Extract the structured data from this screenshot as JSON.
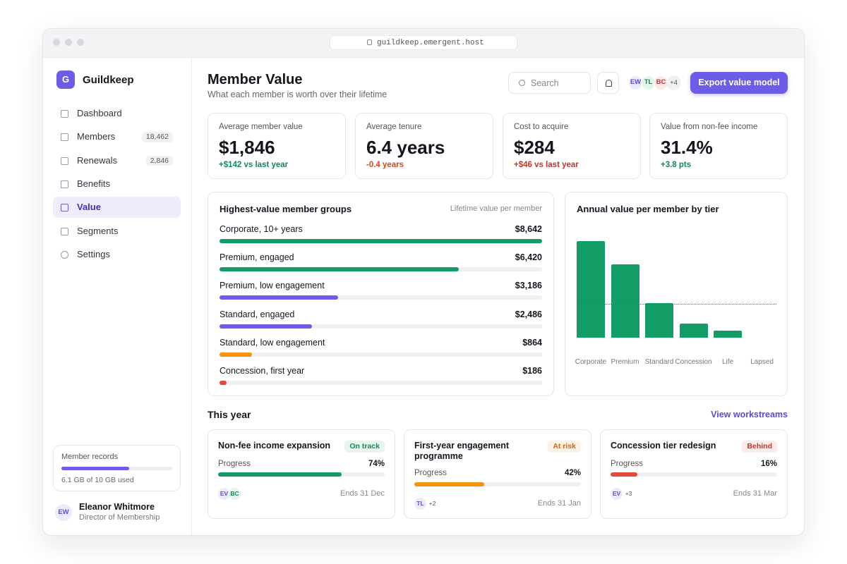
{
  "browser": {
    "url": "guildkeep.emergent.host"
  },
  "sidebar": {
    "brand_initial": "G",
    "brand": "Guildkeep",
    "nav": [
      {
        "label": "Dashboard"
      },
      {
        "label": "Members",
        "badge": "18,462"
      },
      {
        "label": "Renewals",
        "badge": "2,846"
      },
      {
        "label": "Benefits"
      },
      {
        "label": "Value",
        "active": true
      },
      {
        "label": "Segments"
      },
      {
        "label": "Settings"
      }
    ],
    "storage": {
      "title": "Member records",
      "used": 6.1,
      "capacity": 10,
      "label": "6.1 GB of 10 GB used",
      "color": "#6c5ce7"
    },
    "user": {
      "initials": "EW",
      "name": "Eleanor Whitmore",
      "role": "Director of Membership"
    }
  },
  "header": {
    "title": "Member Value",
    "subtitle": "What each member is worth over their lifetime",
    "search_placeholder": "Search",
    "avatars": [
      {
        "initials": "EW",
        "color": "#5b4bd6",
        "bg": "#ecebfb"
      },
      {
        "initials": "TL",
        "color": "#0f8a5a",
        "bg": "#e4f5ec"
      },
      {
        "initials": "BC",
        "color": "#c2372b",
        "bg": "#fbe9e7"
      }
    ],
    "avatar_more": "+4",
    "button": "Export value model"
  },
  "kpis": [
    {
      "label": "Average member value",
      "value": "$1,846",
      "delta": "+$142 vs last year",
      "delta_color": "#0f8a5a"
    },
    {
      "label": "Average tenure",
      "value": "6.4 years",
      "delta": "-0.4 years",
      "delta_color": "#d14b1f"
    },
    {
      "label": "Cost to acquire",
      "value": "$284",
      "delta": "+$46 vs last year",
      "delta_color": "#c2372b"
    },
    {
      "label": "Value from non-fee income",
      "value": "31.4%",
      "delta": "+3.8 pts",
      "delta_color": "#0f8a5a"
    }
  ],
  "chart_data": [
    {
      "type": "hbar",
      "title": "Highest-value member groups",
      "subtitle": "Lifetime value per member",
      "categories": [
        "Corporate, 10+ years",
        "Premium, engaged",
        "Premium, low engagement",
        "Standard, engaged",
        "Standard, low engagement",
        "Concession, first year"
      ],
      "values": [
        8642,
        6420,
        3186,
        2486,
        864,
        186
      ],
      "value_labels": [
        "$8,642",
        "$6,420",
        "$3,186",
        "$2,486",
        "$864",
        "$186"
      ],
      "colors": [
        "#129c66",
        "#129c66",
        "#6c5ce7",
        "#6c5ce7",
        "#f7920f",
        "#e5493a"
      ],
      "xlim": [
        0,
        8642
      ]
    },
    {
      "type": "bar",
      "title": "Annual value per member by tier",
      "categories": [
        "Corporate",
        "Premium",
        "Standard",
        "Concession",
        "Life",
        "Lapsed"
      ],
      "values": [
        1370,
        1040,
        490,
        200,
        100,
        0
      ],
      "color": "#129c66",
      "ylim": [
        0,
        1500
      ],
      "reference_line": 480
    }
  ],
  "workstreams": {
    "title": "This year",
    "link": "View workstreams",
    "items": [
      {
        "title": "Non-fee income expansion",
        "status": "On track",
        "status_color": "#0f8a5a",
        "status_bg": "#e6f6ee",
        "progress_label": "Progress",
        "progress": 74,
        "progress_value_label": "74%",
        "color": "#129c66",
        "owners": [
          "EV",
          "BC"
        ],
        "ends": "Ends 31 Dec"
      },
      {
        "title": "First-year engagement programme",
        "status": "At risk",
        "status_color": "#d9650b",
        "status_bg": "#fdf0e5",
        "progress_label": "Progress",
        "progress": 42,
        "progress_value_label": "42%",
        "color": "#f7920f",
        "owners": [
          "TL"
        ],
        "owners_more": "+2",
        "ends": "Ends 31 Jan"
      },
      {
        "title": "Concession tier redesign",
        "status": "Behind",
        "status_color": "#c2372b",
        "status_bg": "#fdebe9",
        "progress_label": "Progress",
        "progress": 16,
        "progress_value_label": "16%",
        "color": "#e5493a",
        "owners": [
          "EV"
        ],
        "owners_more": "+3",
        "ends": "Ends 31 Mar"
      }
    ]
  }
}
